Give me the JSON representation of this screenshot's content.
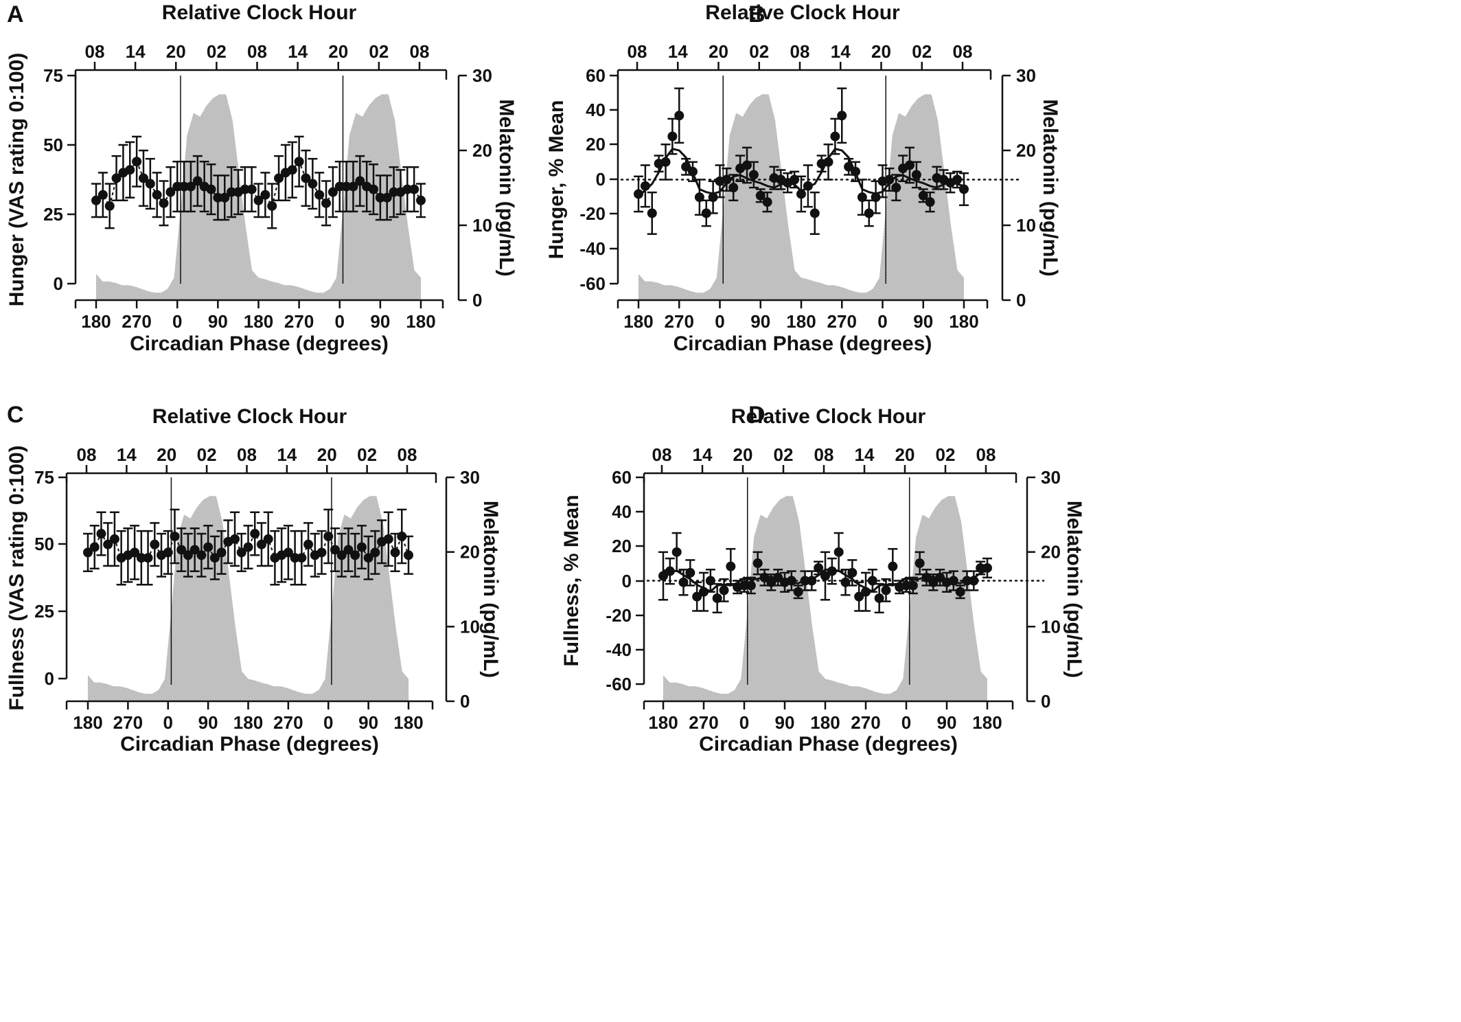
{
  "chart_data": [
    {
      "panel": "A",
      "type": "scatter",
      "top_axis": {
        "title": "Relative Clock Hour",
        "ticks": [
          "08",
          "14",
          "20",
          "02",
          "08",
          "14",
          "20",
          "02",
          "08"
        ]
      },
      "bottom_axis": {
        "title": "Circadian Phase (degrees)",
        "ticks": [
          "180",
          "270",
          "0",
          "90",
          "180",
          "270",
          "0",
          "90",
          "180"
        ]
      },
      "y_left": {
        "label": "Hunger (VAS rating 0:100)",
        "ticks": [
          "0",
          "25",
          "50",
          "75"
        ],
        "range": [
          0,
          75
        ]
      },
      "y_right": {
        "label": "Melatonin (pg/mL)",
        "ticks": [
          "0",
          "10",
          "20",
          "30"
        ],
        "range": [
          0,
          30
        ]
      },
      "melatonin_profile_pg_ml": [
        3.5,
        2.5,
        2.5,
        2.3,
        2,
        2,
        1.8,
        1.5,
        1.2,
        1,
        1,
        1.5,
        3,
        12,
        22,
        25,
        24.5,
        26,
        27,
        27.5,
        27.5,
        24,
        17,
        10,
        4,
        3,
        2.8,
        2.5,
        2.3,
        2,
        2,
        1.8,
        1.5,
        1.2,
        1,
        1,
        1.5,
        3,
        12,
        22,
        25,
        24.5,
        26,
        27,
        27.5,
        27.5,
        24,
        17,
        10,
        4,
        3
      ],
      "series": [
        {
          "values": [
            30,
            32,
            28,
            38,
            40,
            41,
            44,
            38,
            36,
            32,
            29,
            33,
            35,
            35,
            35,
            37,
            35,
            34,
            31,
            31,
            33,
            33,
            34,
            34,
            30,
            32,
            28,
            38,
            40,
            41,
            44,
            38,
            36,
            32,
            29,
            33,
            35,
            35,
            35,
            37,
            35,
            34,
            31,
            31,
            33,
            33,
            34,
            34,
            30
          ],
          "errors": [
            6,
            8,
            8,
            8,
            10,
            10,
            9,
            10,
            9,
            8,
            8,
            9,
            9,
            9,
            9,
            9,
            9,
            9,
            8,
            8,
            9,
            8,
            8,
            8,
            6,
            8,
            8,
            8,
            10,
            10,
            9,
            10,
            9,
            8,
            8,
            9,
            9,
            9,
            9,
            9,
            9,
            9,
            8,
            8,
            9,
            8,
            8,
            8,
            6
          ],
          "reference_line": null,
          "fit_curve": false
        }
      ]
    },
    {
      "panel": "B",
      "type": "scatter",
      "top_axis": {
        "title": "Relative Clock Hour",
        "ticks": [
          "08",
          "14",
          "20",
          "02",
          "08",
          "14",
          "20",
          "02",
          "08"
        ]
      },
      "bottom_axis": {
        "title": "Circadian Phase (degrees)",
        "ticks": [
          "180",
          "270",
          "0",
          "90",
          "180",
          "270",
          "0",
          "90",
          "180"
        ]
      },
      "y_left": {
        "label": "Hunger, % Mean",
        "ticks": [
          "-60",
          "-40",
          "-20",
          "0",
          "20",
          "40",
          "60"
        ],
        "range": [
          -65,
          65
        ]
      },
      "y_right": {
        "label": "Melatonin (pg/mL)",
        "ticks": [
          "0",
          "10",
          "20",
          "30"
        ],
        "range": [
          0,
          30
        ]
      },
      "melatonin_profile_pg_ml": [
        3.5,
        2.5,
        2.5,
        2.3,
        2,
        2,
        1.8,
        1.5,
        1.2,
        1,
        1,
        1.5,
        3,
        12,
        22,
        25,
        24.5,
        26,
        27,
        27.5,
        27.5,
        24,
        17,
        10,
        4,
        3,
        2.8,
        2.5,
        2.3,
        2,
        2,
        1.8,
        1.5,
        1.2,
        1,
        1,
        1.5,
        3,
        12,
        22,
        25,
        24.5,
        26,
        27,
        27.5,
        27.5,
        24,
        17,
        10,
        4,
        3
      ],
      "series": [
        {
          "values": [
            -9,
            -4,
            -21,
            10,
            11,
            27,
            40,
            8,
            5,
            -11,
            -21,
            -11,
            -1,
            0,
            -5,
            7,
            9,
            3,
            -10,
            -14,
            1,
            0,
            -2,
            0,
            -9,
            -4,
            -21,
            10,
            11,
            27,
            40,
            8,
            5,
            -11,
            -21,
            -11,
            -1,
            0,
            -5,
            7,
            9,
            3,
            -10,
            -14,
            1,
            0,
            -2,
            0,
            -6
          ],
          "errors": [
            11,
            13,
            13,
            5,
            11,
            11,
            17,
            5,
            6,
            11,
            8,
            10,
            10,
            7,
            8,
            8,
            11,
            8,
            4,
            6,
            7,
            6,
            6,
            5,
            11,
            13,
            13,
            5,
            11,
            11,
            17,
            5,
            6,
            11,
            8,
            10,
            10,
            7,
            8,
            8,
            11,
            8,
            4,
            6,
            7,
            6,
            6,
            5,
            10
          ],
          "reference_line": 0,
          "fit_curve": true
        }
      ]
    },
    {
      "panel": "C",
      "type": "scatter",
      "top_axis": {
        "title": "Relative Clock Hour",
        "ticks": [
          "08",
          "14",
          "20",
          "02",
          "08",
          "14",
          "20",
          "02",
          "08"
        ]
      },
      "bottom_axis": {
        "title": "Circadian Phase (degrees)",
        "ticks": [
          "180",
          "270",
          "0",
          "90",
          "180",
          "270",
          "0",
          "90",
          "180"
        ]
      },
      "y_left": {
        "label": "Fullness (VAS rating 0:100)",
        "ticks": [
          "0",
          "25",
          "50",
          "75"
        ],
        "range": [
          0,
          75
        ]
      },
      "y_right": {
        "label": "Melatonin (pg/mL)",
        "ticks": [
          "0",
          "10",
          "20",
          "30"
        ],
        "range": [
          0,
          30
        ]
      },
      "melatonin_profile_pg_ml": [
        3.5,
        2.5,
        2.5,
        2.3,
        2,
        2,
        1.8,
        1.5,
        1.2,
        1,
        1,
        1.5,
        3,
        12,
        22,
        25,
        24.5,
        26,
        27,
        27.5,
        27.5,
        24,
        17,
        10,
        4,
        3,
        2.8,
        2.5,
        2.3,
        2,
        2,
        1.8,
        1.5,
        1.2,
        1,
        1,
        1.5,
        3,
        12,
        22,
        25,
        24.5,
        26,
        27,
        27.5,
        27.5,
        24,
        17,
        10,
        4,
        3
      ],
      "series": [
        {
          "values": [
            47,
            49,
            54,
            50,
            52,
            45,
            46,
            47,
            45,
            45,
            50,
            46,
            47,
            53,
            48,
            46,
            48,
            46,
            49,
            45,
            47,
            51,
            52,
            47,
            49,
            54,
            50,
            52,
            45,
            46,
            47,
            45,
            45,
            50,
            46,
            47,
            53,
            48,
            46,
            48,
            46,
            49,
            45,
            47,
            51,
            52,
            47,
            53,
            46
          ],
          "errors": [
            7,
            8,
            8,
            8,
            10,
            10,
            10,
            10,
            10,
            10,
            8,
            8,
            8,
            10,
            8,
            8,
            8,
            8,
            8,
            8,
            8,
            8,
            10,
            7,
            8,
            8,
            8,
            10,
            10,
            10,
            10,
            10,
            10,
            8,
            8,
            8,
            10,
            8,
            8,
            8,
            8,
            8,
            8,
            8,
            8,
            10,
            7,
            10,
            7
          ],
          "reference_line": null,
          "fit_curve": false
        }
      ]
    },
    {
      "panel": "D",
      "type": "scatter",
      "top_axis": {
        "title": "Relative Clock Hour",
        "ticks": [
          "08",
          "14",
          "20",
          "02",
          "08",
          "14",
          "20",
          "02",
          "08"
        ]
      },
      "bottom_axis": {
        "title": "Circadian Phase (degrees)",
        "ticks": [
          "180",
          "270",
          "0",
          "90",
          "180",
          "270",
          "0",
          "90",
          "180"
        ]
      },
      "y_left": {
        "label": "Fullness, % Mean",
        "ticks": [
          "-60",
          "-40",
          "-20",
          "0",
          "20",
          "40",
          "60"
        ],
        "range": [
          -65,
          65
        ]
      },
      "y_right": {
        "label": "Melatonin (pg/mL)",
        "ticks": [
          "0",
          "10",
          "20",
          "30"
        ],
        "range": [
          0,
          30
        ]
      },
      "melatonin_profile_pg_ml": [
        3.5,
        2.5,
        2.5,
        2.3,
        2,
        2,
        1.8,
        1.5,
        1.2,
        1,
        1,
        1.5,
        3,
        12,
        22,
        25,
        24.5,
        26,
        27,
        27.5,
        27.5,
        24,
        17,
        10,
        4,
        3,
        2.8,
        2.5,
        2.3,
        2,
        2,
        1.8,
        1.5,
        1.2,
        1,
        1,
        1.5,
        3,
        12,
        22,
        25,
        24.5,
        26,
        27,
        27.5,
        27.5,
        24,
        17,
        10,
        4,
        3
      ],
      "series": [
        {
          "values": [
            3,
            6,
            18,
            -1,
            5,
            -10,
            -7,
            0,
            -11,
            -6,
            9,
            -4,
            -3,
            -3,
            11,
            2,
            -1,
            2,
            -1,
            0,
            -7,
            0,
            0,
            8,
            3,
            6,
            18,
            -1,
            5,
            -10,
            -7,
            0,
            -11,
            -6,
            9,
            -4,
            -3,
            -3,
            11,
            2,
            -1,
            2,
            -1,
            0,
            -7,
            0,
            0,
            8,
            8
          ],
          "errors": [
            15,
            8,
            12,
            8,
            8,
            9,
            12,
            7,
            9,
            7,
            11,
            4,
            4,
            5,
            7,
            5,
            5,
            5,
            6,
            6,
            4,
            6,
            6,
            4,
            15,
            8,
            12,
            8,
            8,
            9,
            12,
            7,
            9,
            7,
            11,
            4,
            4,
            5,
            7,
            5,
            5,
            5,
            6,
            6,
            4,
            6,
            6,
            4,
            6
          ],
          "reference_line": 0,
          "fit_curve": true
        }
      ]
    }
  ]
}
